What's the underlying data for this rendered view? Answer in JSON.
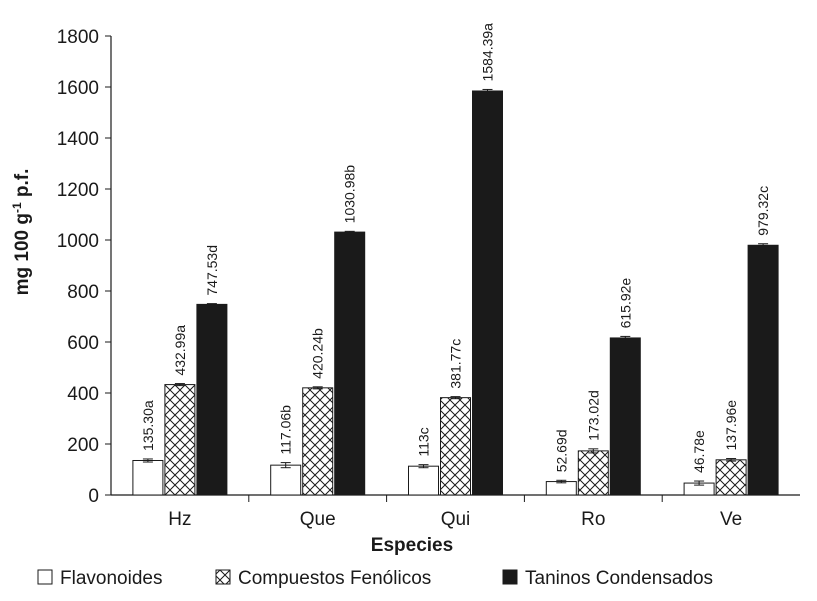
{
  "chart_data": {
    "type": "bar",
    "xlabel": "Especies",
    "ylabel_main": "mg 100 g",
    "ylabel_sup": "-1",
    "ylabel_tail": " p.f.",
    "ylim": [
      0,
      1800
    ],
    "yticks": [
      0,
      200,
      400,
      600,
      800,
      1000,
      1200,
      1400,
      1600,
      1800
    ],
    "categories": [
      "Hz",
      "Que",
      "Qui",
      "Ro",
      "Ve"
    ],
    "series": [
      {
        "name": "Flavonoides",
        "pattern": "white",
        "values": [
          135.3,
          117.06,
          113,
          52.69,
          46.78
        ],
        "errors": [
          6,
          10,
          6,
          5,
          8
        ],
        "labels": [
          "135.30a",
          "117.06b",
          "113c",
          "52.69d",
          "46.78e"
        ]
      },
      {
        "name": "Compuestos Fenólicos",
        "pattern": "crosshatch",
        "values": [
          432.99,
          420.24,
          381.77,
          173.02,
          137.96
        ],
        "errors": [
          4,
          4,
          4,
          8,
          5
        ],
        "labels": [
          "432.99a",
          "420.24b",
          "381.77c",
          "173.02d",
          "137.96e"
        ]
      },
      {
        "name": "Taninos Condensados",
        "pattern": "black",
        "values": [
          747.53,
          1030.98,
          1584.39,
          615.92,
          979.32
        ],
        "errors": [
          3,
          3,
          6,
          6,
          6
        ],
        "labels": [
          "747.53d",
          "1030.98b",
          "1584.39a",
          "615.92e",
          "979.32c"
        ]
      }
    ],
    "legend_position": "bottom",
    "colors": {
      "bar_black": "#1a1a1a",
      "bar_white": "#ffffff",
      "stroke": "#1a1a1a"
    }
  }
}
